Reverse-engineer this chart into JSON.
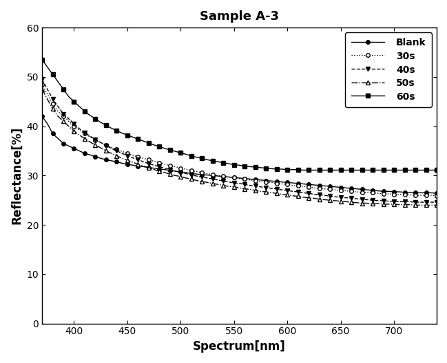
{
  "title": "Sample A-3",
  "xlabel": "Spectrum[nm]",
  "ylabel": "Reflectance[%]",
  "xlim": [
    370,
    740
  ],
  "ylim": [
    0,
    60
  ],
  "yticks": [
    0,
    10,
    20,
    30,
    40,
    50,
    60
  ],
  "xticks": [
    400,
    450,
    500,
    550,
    600,
    650,
    700
  ],
  "background_color": "#ffffff",
  "series": [
    {
      "label": "Blank",
      "linestyle": "-",
      "marker": "o",
      "markerfacecolor": "black",
      "markeredgecolor": "black",
      "color": "black",
      "x": [
        370,
        375,
        380,
        385,
        390,
        395,
        400,
        405,
        410,
        415,
        420,
        425,
        430,
        435,
        440,
        445,
        450,
        455,
        460,
        465,
        470,
        475,
        480,
        485,
        490,
        495,
        500,
        505,
        510,
        515,
        520,
        525,
        530,
        535,
        540,
        545,
        550,
        555,
        560,
        565,
        570,
        575,
        580,
        585,
        590,
        595,
        600,
        605,
        610,
        615,
        620,
        625,
        630,
        635,
        640,
        645,
        650,
        655,
        660,
        665,
        670,
        675,
        680,
        685,
        690,
        695,
        700,
        705,
        710,
        715,
        720,
        725,
        730,
        735,
        740
      ],
      "y": [
        42.0,
        40.5,
        38.5,
        37.5,
        36.5,
        36.0,
        35.5,
        35.0,
        34.5,
        34.2,
        33.8,
        33.5,
        33.2,
        33.0,
        32.8,
        32.5,
        32.3,
        32.1,
        31.9,
        31.8,
        31.6,
        31.5,
        31.3,
        31.2,
        31.0,
        30.9,
        30.7,
        30.6,
        30.4,
        30.3,
        30.2,
        30.1,
        30.0,
        29.9,
        29.8,
        29.7,
        29.6,
        29.5,
        29.4,
        29.3,
        29.2,
        29.1,
        29.0,
        28.9,
        28.8,
        28.7,
        28.6,
        28.5,
        28.4,
        28.3,
        28.2,
        28.1,
        28.0,
        27.9,
        27.8,
        27.7,
        27.6,
        27.5,
        27.4,
        27.3,
        27.2,
        27.1,
        27.0,
        26.9,
        26.8,
        26.8,
        26.7,
        26.7,
        26.6,
        26.6,
        26.5,
        26.5,
        26.5,
        26.5,
        26.4
      ]
    },
    {
      "label": "30s",
      "linestyle": ":",
      "marker": "o",
      "markerfacecolor": "white",
      "markeredgecolor": "black",
      "color": "black",
      "x": [
        370,
        375,
        380,
        385,
        390,
        395,
        400,
        405,
        410,
        415,
        420,
        425,
        430,
        435,
        440,
        445,
        450,
        455,
        460,
        465,
        470,
        475,
        480,
        485,
        490,
        495,
        500,
        505,
        510,
        515,
        520,
        525,
        530,
        535,
        540,
        545,
        550,
        555,
        560,
        565,
        570,
        575,
        580,
        585,
        590,
        595,
        600,
        605,
        610,
        615,
        620,
        625,
        630,
        635,
        640,
        645,
        650,
        655,
        660,
        665,
        670,
        675,
        680,
        685,
        690,
        695,
        700,
        705,
        710,
        715,
        720,
        725,
        730,
        735,
        740
      ],
      "y": [
        48.5,
        46.5,
        44.5,
        43.0,
        42.0,
        41.0,
        40.0,
        39.2,
        38.5,
        37.8,
        37.2,
        36.7,
        36.2,
        35.7,
        35.3,
        34.9,
        34.5,
        34.1,
        33.8,
        33.5,
        33.2,
        32.9,
        32.6,
        32.3,
        32.0,
        31.8,
        31.5,
        31.3,
        31.0,
        30.8,
        30.6,
        30.4,
        30.2,
        30.0,
        29.9,
        29.7,
        29.6,
        29.4,
        29.3,
        29.1,
        29.0,
        28.8,
        28.7,
        28.6,
        28.4,
        28.3,
        28.2,
        28.0,
        27.9,
        27.8,
        27.7,
        27.5,
        27.4,
        27.3,
        27.2,
        27.1,
        27.0,
        26.9,
        26.8,
        26.7,
        26.6,
        26.6,
        26.5,
        26.4,
        26.3,
        26.3,
        26.2,
        26.2,
        26.1,
        26.1,
        26.0,
        26.0,
        26.0,
        26.0,
        25.9
      ]
    },
    {
      "label": "40s",
      "linestyle": "--",
      "marker": "v",
      "markerfacecolor": "black",
      "markeredgecolor": "black",
      "color": "black",
      "x": [
        370,
        375,
        380,
        385,
        390,
        395,
        400,
        405,
        410,
        415,
        420,
        425,
        430,
        435,
        440,
        445,
        450,
        455,
        460,
        465,
        470,
        475,
        480,
        485,
        490,
        495,
        500,
        505,
        510,
        515,
        520,
        525,
        530,
        535,
        540,
        545,
        550,
        555,
        560,
        565,
        570,
        575,
        580,
        585,
        590,
        595,
        600,
        605,
        610,
        615,
        620,
        625,
        630,
        635,
        640,
        645,
        650,
        655,
        660,
        665,
        670,
        675,
        680,
        685,
        690,
        695,
        700,
        705,
        710,
        715,
        720,
        725,
        730,
        735,
        740
      ],
      "y": [
        49.5,
        47.5,
        45.5,
        44.0,
        42.5,
        41.5,
        40.5,
        39.5,
        38.7,
        38.0,
        37.3,
        36.7,
        36.1,
        35.5,
        35.0,
        34.5,
        34.0,
        33.6,
        33.2,
        32.8,
        32.4,
        32.1,
        31.8,
        31.5,
        31.2,
        30.9,
        30.6,
        30.4,
        30.1,
        29.9,
        29.7,
        29.5,
        29.3,
        29.1,
        28.9,
        28.7,
        28.5,
        28.4,
        28.2,
        28.0,
        27.9,
        27.7,
        27.6,
        27.4,
        27.3,
        27.1,
        27.0,
        26.8,
        26.7,
        26.5,
        26.4,
        26.2,
        26.1,
        26.0,
        25.8,
        25.7,
        25.6,
        25.5,
        25.4,
        25.3,
        25.2,
        25.1,
        25.0,
        24.9,
        24.9,
        24.8,
        24.8,
        24.7,
        24.7,
        24.7,
        24.6,
        24.6,
        24.6,
        24.6,
        24.6
      ]
    },
    {
      "label": "50s",
      "linestyle": "-.",
      "marker": "^",
      "markerfacecolor": "white",
      "markeredgecolor": "black",
      "color": "black",
      "x": [
        370,
        375,
        380,
        385,
        390,
        395,
        400,
        405,
        410,
        415,
        420,
        425,
        430,
        435,
        440,
        445,
        450,
        455,
        460,
        465,
        470,
        475,
        480,
        485,
        490,
        495,
        500,
        505,
        510,
        515,
        520,
        525,
        530,
        535,
        540,
        545,
        550,
        555,
        560,
        565,
        570,
        575,
        580,
        585,
        590,
        595,
        600,
        605,
        610,
        615,
        620,
        625,
        630,
        635,
        640,
        645,
        650,
        655,
        660,
        665,
        670,
        675,
        680,
        685,
        690,
        695,
        700,
        705,
        710,
        715,
        720,
        725,
        730,
        735,
        740
      ],
      "y": [
        47.5,
        45.5,
        43.5,
        42.0,
        41.0,
        40.0,
        39.0,
        38.2,
        37.5,
        36.8,
        36.2,
        35.6,
        35.0,
        34.5,
        34.0,
        33.5,
        33.1,
        32.7,
        32.3,
        31.9,
        31.6,
        31.2,
        30.9,
        30.6,
        30.3,
        30.0,
        29.8,
        29.5,
        29.3,
        29.0,
        28.8,
        28.6,
        28.4,
        28.2,
        28.0,
        27.8,
        27.7,
        27.5,
        27.3,
        27.2,
        27.0,
        26.8,
        26.7,
        26.5,
        26.4,
        26.2,
        26.1,
        25.9,
        25.8,
        25.6,
        25.5,
        25.4,
        25.2,
        25.1,
        25.0,
        24.9,
        24.8,
        24.7,
        24.6,
        24.5,
        24.4,
        24.4,
        24.3,
        24.3,
        24.2,
        24.2,
        24.2,
        24.1,
        24.1,
        24.1,
        24.0,
        24.0,
        24.0,
        24.0,
        24.0
      ]
    },
    {
      "label": "60s",
      "linestyle": "-",
      "marker": "s",
      "markerfacecolor": "black",
      "markeredgecolor": "black",
      "color": "black",
      "x": [
        370,
        375,
        380,
        385,
        390,
        395,
        400,
        405,
        410,
        415,
        420,
        425,
        430,
        435,
        440,
        445,
        450,
        455,
        460,
        465,
        470,
        475,
        480,
        485,
        490,
        495,
        500,
        505,
        510,
        515,
        520,
        525,
        530,
        535,
        540,
        545,
        550,
        555,
        560,
        565,
        570,
        575,
        580,
        585,
        590,
        595,
        600,
        605,
        610,
        615,
        620,
        625,
        630,
        635,
        640,
        645,
        650,
        655,
        660,
        665,
        670,
        675,
        680,
        685,
        690,
        695,
        700,
        705,
        710,
        715,
        720,
        725,
        730,
        735,
        740
      ],
      "y": [
        53.5,
        52.0,
        50.5,
        49.0,
        47.5,
        46.0,
        45.0,
        44.0,
        43.0,
        42.2,
        41.5,
        40.8,
        40.2,
        39.6,
        39.1,
        38.6,
        38.2,
        37.8,
        37.4,
        37.0,
        36.6,
        36.2,
        35.9,
        35.5,
        35.2,
        34.9,
        34.6,
        34.3,
        34.0,
        33.7,
        33.5,
        33.2,
        33.0,
        32.8,
        32.6,
        32.4,
        32.2,
        32.1,
        31.9,
        31.8,
        31.7,
        31.6,
        31.5,
        31.4,
        31.3,
        31.3,
        31.2,
        31.2,
        31.2,
        31.1,
        31.1,
        31.1,
        31.1,
        31.1,
        31.1,
        31.1,
        31.1,
        31.1,
        31.1,
        31.1,
        31.1,
        31.1,
        31.1,
        31.1,
        31.1,
        31.1,
        31.1,
        31.1,
        31.1,
        31.1,
        31.1,
        31.1,
        31.1,
        31.1,
        31.1
      ]
    }
  ]
}
